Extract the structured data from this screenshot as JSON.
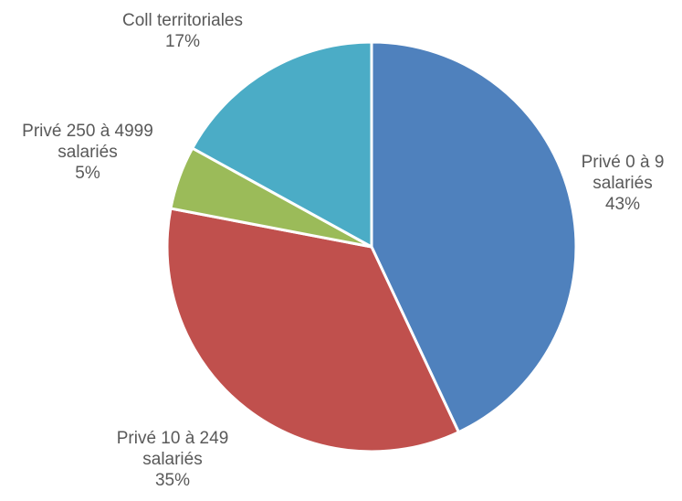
{
  "chart_data": {
    "type": "pie",
    "slices": [
      {
        "name_lines": [
          "Privé 0 à 9",
          "salariés"
        ],
        "value": 43,
        "label": "43%",
        "color": "#4F81BD"
      },
      {
        "name_lines": [
          "Privé 10 à 249",
          "salariés"
        ],
        "value": 35,
        "label": "35%",
        "color": "#C0504D"
      },
      {
        "name_lines": [
          "Privé 250 à 4999",
          "salariés"
        ],
        "value": 5,
        "label": "5%",
        "color": "#9BBB59"
      },
      {
        "name_lines": [
          "Coll territoriales"
        ],
        "value": 17,
        "label": "17%",
        "color": "#4BACC6"
      }
    ]
  }
}
